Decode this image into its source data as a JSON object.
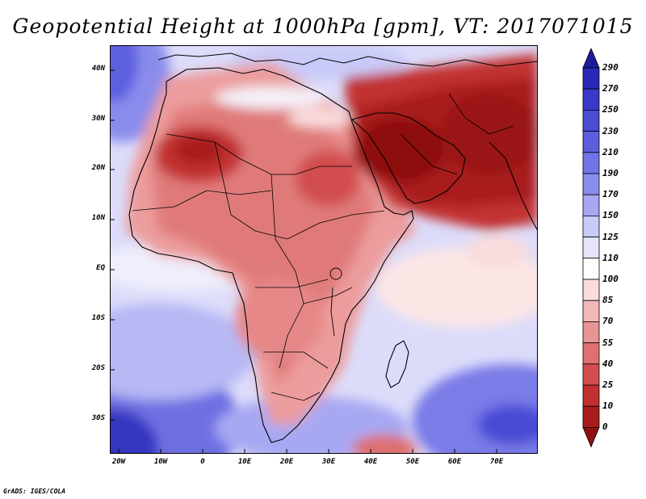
{
  "title": "Geopotential Height at 1000hPa [gpm], VT: 2017071015",
  "credit": "GrADS: IGES/COLA",
  "map": {
    "projection": "lat-lon",
    "lat_range": [
      -37,
      45
    ],
    "lon_range": [
      -22,
      80
    ],
    "lat_labels": [
      "40N",
      "30N",
      "20N",
      "10N",
      "EQ",
      "10S",
      "20S",
      "30S"
    ],
    "lon_labels": [
      "20W",
      "10W",
      "0",
      "10E",
      "20E",
      "30E",
      "40E",
      "50E",
      "60E",
      "70E"
    ]
  },
  "colorbar": {
    "levels": [
      "290",
      "270",
      "250",
      "230",
      "210",
      "190",
      "170",
      "150",
      "125",
      "110",
      "100",
      "85",
      "70",
      "55",
      "40",
      "25",
      "10",
      "0"
    ],
    "colors": [
      "#1e1a9c",
      "#2a28b8",
      "#3a3ac8",
      "#4a4cd4",
      "#5c5ede",
      "#7173e6",
      "#8a8cec",
      "#a7a8f2",
      "#c9caf8",
      "#e4e4fb",
      "#ffffff",
      "#fadcdc",
      "#f2b8b8",
      "#e99494",
      "#de7070",
      "#d24e4e",
      "#c23030",
      "#a81c1c",
      "#8e1010"
    ]
  }
}
